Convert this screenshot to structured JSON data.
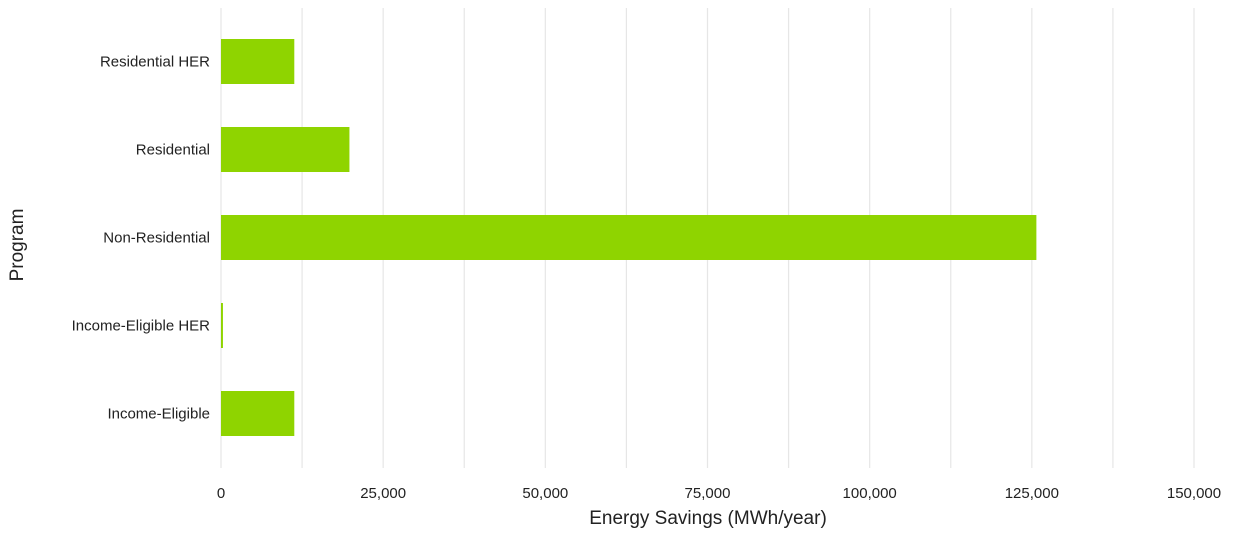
{
  "chart_data": {
    "type": "bar",
    "orientation": "horizontal",
    "title": "",
    "xlabel": "Energy Savings (MWh/year)",
    "ylabel": "Program",
    "categories": [
      "Residential HER",
      "Residential",
      "Non-Residential",
      "Income-Eligible HER",
      "Income-Eligible"
    ],
    "values": [
      11300,
      19800,
      125700,
      300,
      11300
    ],
    "xlim": [
      0,
      150000
    ],
    "xticks": [
      0,
      25000,
      50000,
      75000,
      100000,
      125000,
      150000
    ],
    "xtick_labels": [
      "0",
      "25,000",
      "50,000",
      "75,000",
      "100,000",
      "125,000",
      "150,000"
    ],
    "grid": "vertical",
    "legend": "none",
    "colors": {
      "bar": "#8fd400",
      "grid": "#e6e6e6",
      "text": "#222222"
    }
  }
}
